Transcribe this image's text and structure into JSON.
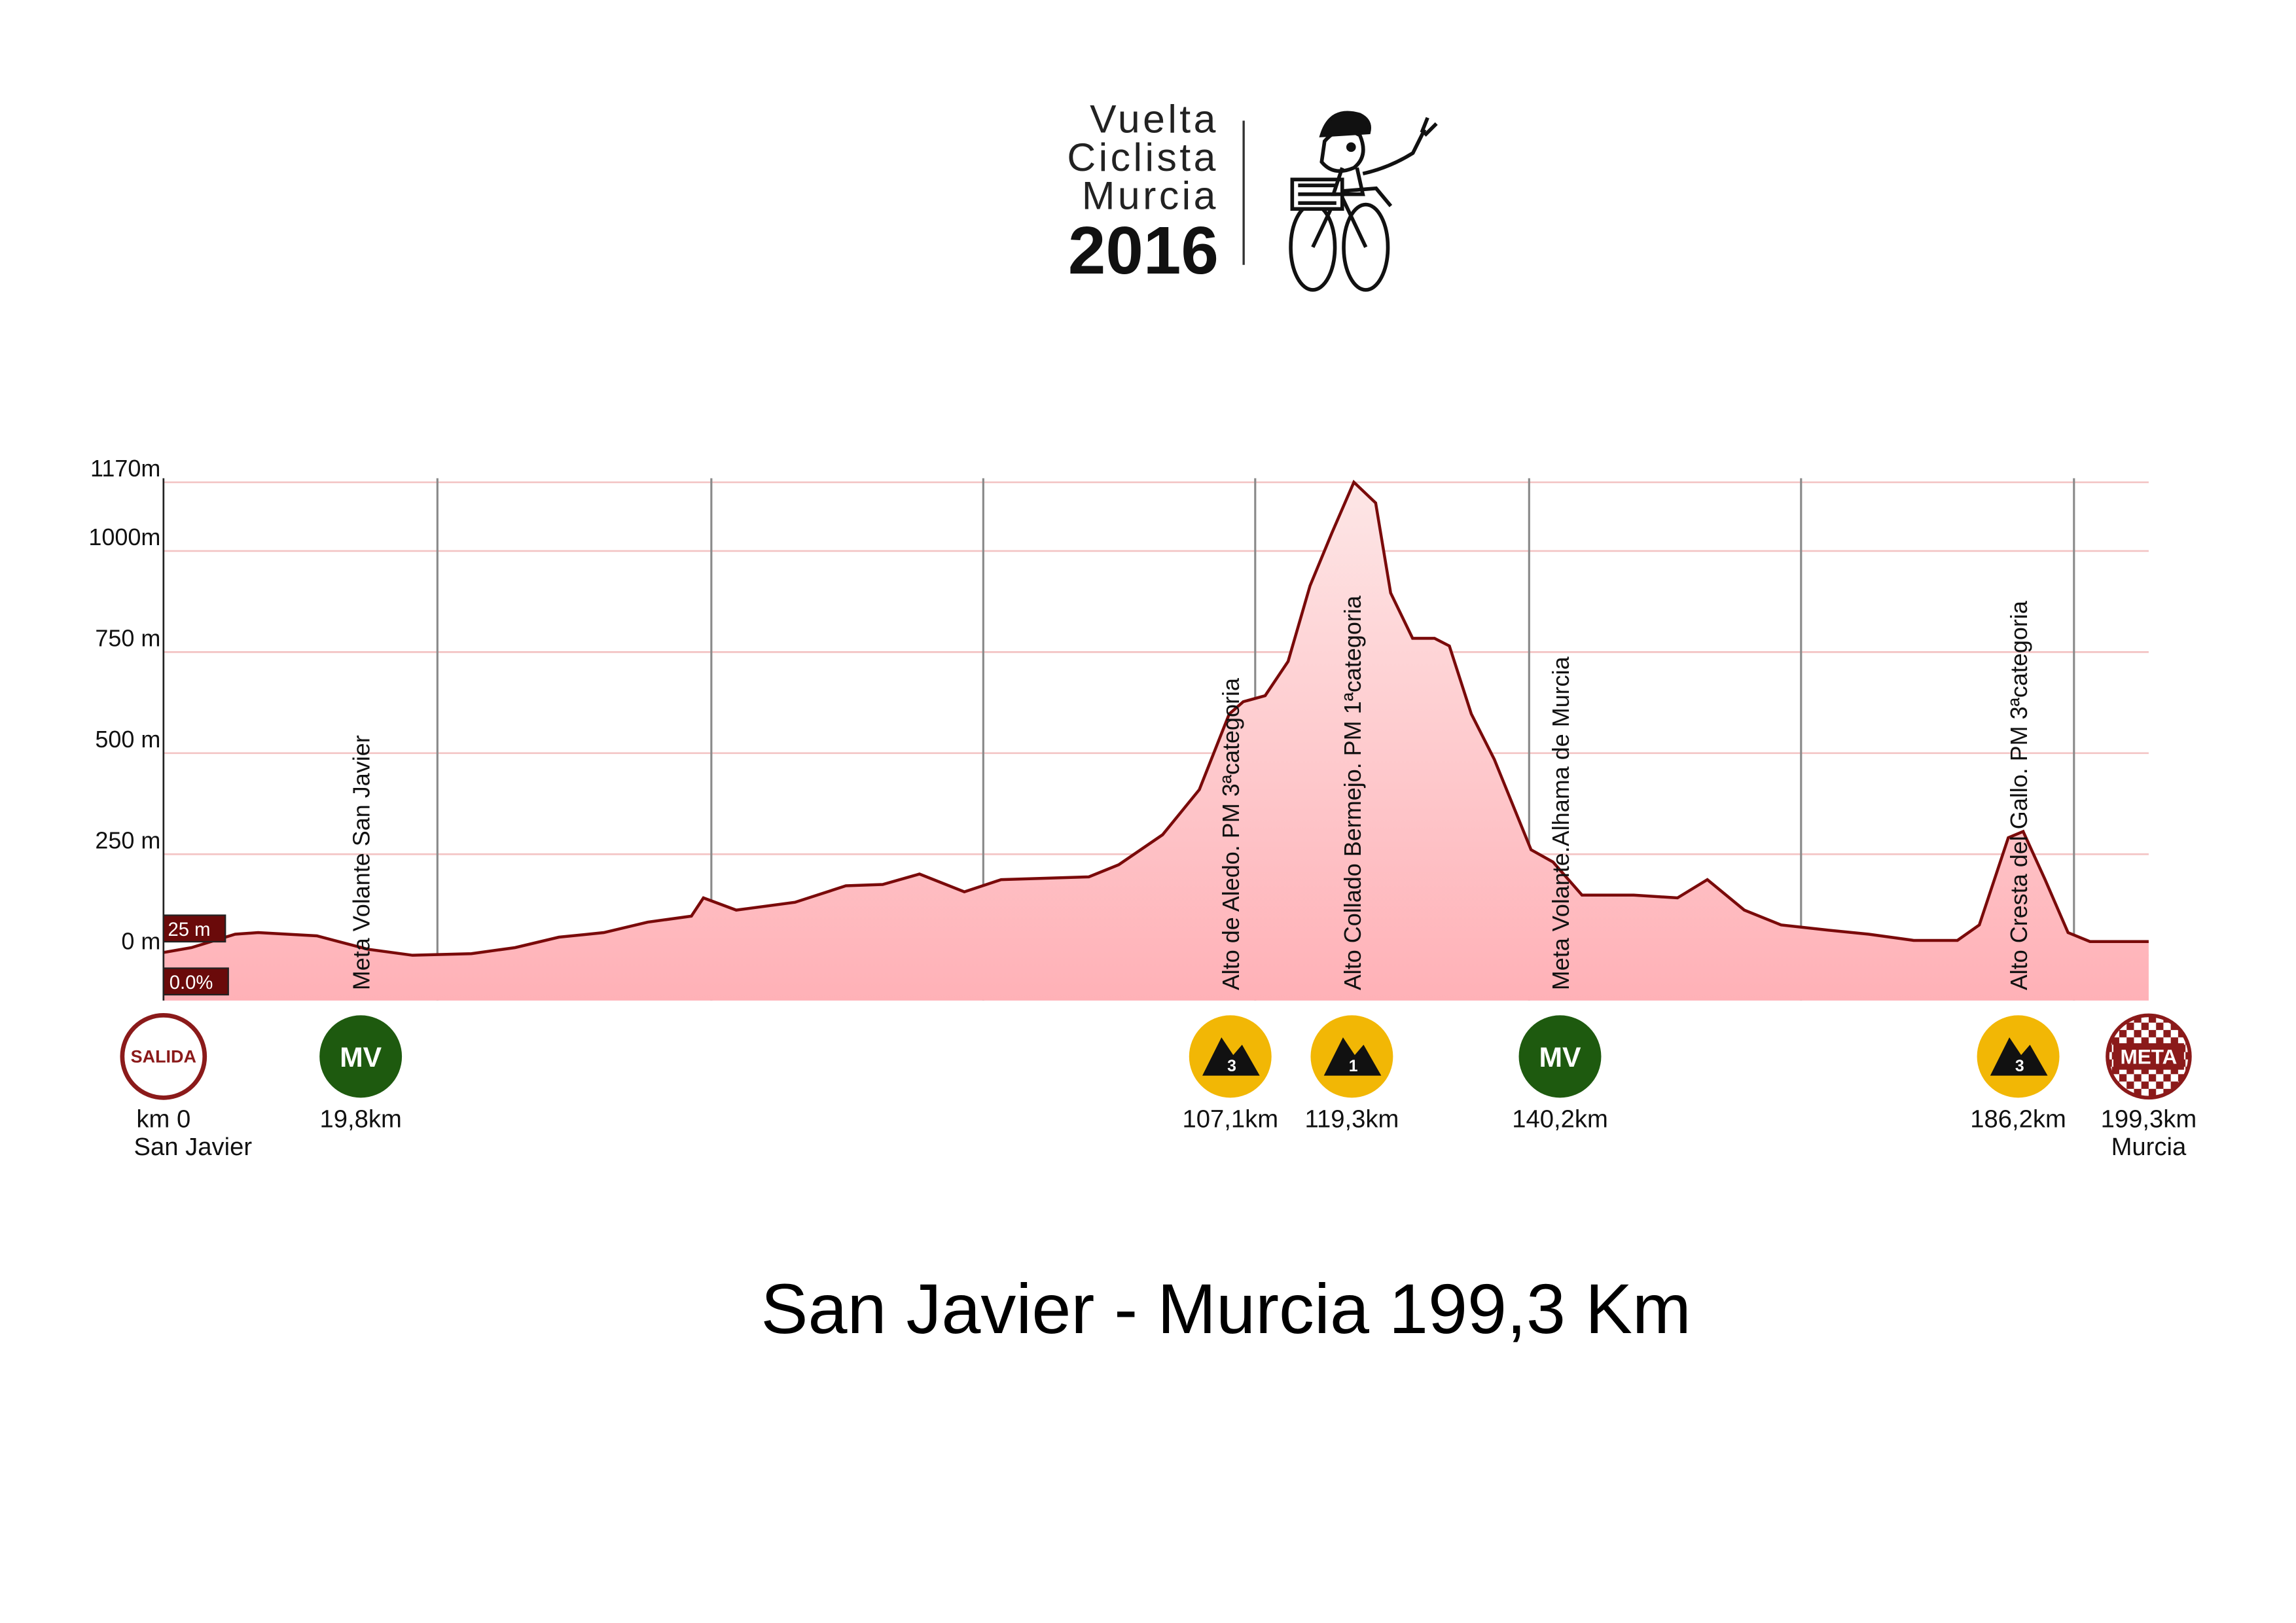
{
  "logo": {
    "lines": [
      "Vuelta",
      "Ciclista",
      "Murcia"
    ],
    "year": "2016"
  },
  "chart_data": {
    "type": "area",
    "title": "San Javier - Murcia 199,3 Km",
    "x": [
      0,
      2.8,
      7.2,
      9.5,
      15.4,
      20.5,
      25.0,
      30.9,
      35.3,
      39.7,
      44.2,
      48.6,
      53.0,
      54.2,
      57.5,
      63.4,
      68.5,
      72.2,
      75.9,
      80.4,
      84.1,
      92.9,
      95.9,
      100.3,
      104.0,
      107.0,
      108.4,
      110.6,
      112.9,
      115.1,
      117.3,
      119.5,
      121.7,
      123.2,
      125.4,
      127.6,
      129.1,
      131.3,
      133.6,
      137.3,
      139.5,
      142.4,
      147.6,
      152.0,
      155.0,
      158.7,
      162.4,
      166.8,
      171.2,
      175.7,
      180.1,
      182.3,
      185.2,
      186.7,
      188.9,
      191.2,
      193.4,
      199.3
    ],
    "values": [
      7,
      19,
      52,
      56,
      48,
      15,
      0,
      4,
      19,
      45,
      56,
      82,
      97,
      142,
      112,
      131,
      172,
      175,
      201,
      157,
      187,
      194,
      224,
      298,
      410,
      597,
      627,
      642,
      727,
      914,
      1045,
      1170,
      1119,
      896,
      784,
      784,
      765,
      597,
      485,
      261,
      231,
      149,
      149,
      142,
      187,
      112,
      75,
      63,
      52,
      37,
      37,
      75,
      291,
      306,
      187,
      56,
      34,
      34
    ],
    "color": "#7a0a0a",
    "fill": [
      "#fde6e6",
      "#ffb1b7"
    ],
    "xlim": [
      0,
      199.3
    ],
    "ylim": [
      -112,
      1180
    ],
    "yticks": [
      {
        "value": 0,
        "label": "0 m"
      },
      {
        "value": 250,
        "label": "250 m"
      },
      {
        "value": 500,
        "label": "500 m"
      },
      {
        "value": 750,
        "label": "750 m"
      },
      {
        "value": 1000,
        "label": "1000m"
      },
      {
        "value": 1170,
        "label": "1170m"
      }
    ],
    "xgrid": [
      27.5,
      55.0,
      82.3,
      109.6,
      137.1,
      164.4,
      191.8
    ],
    "grid": true,
    "readout": {
      "elevation": "25 m",
      "grade": "0.0%"
    },
    "markers": [
      {
        "km": 0,
        "icon": "SALIDA",
        "style": "ring",
        "color": "#8b1a1a",
        "value_label": "km 0",
        "place": "San Javier"
      },
      {
        "km": 19.8,
        "icon": "MV",
        "style": "disc",
        "color": "#1e5a0f",
        "value_label": "19,8km",
        "annotation": "Meta Volante San Javier"
      },
      {
        "km": 107.1,
        "icon": "3",
        "style": "mountain",
        "color": "#f2b705",
        "value_label": "107,1km",
        "annotation": "Alto de Aledo. PM 3ªcategoria"
      },
      {
        "km": 119.3,
        "icon": "1",
        "style": "mountain",
        "color": "#f2b705",
        "value_label": "119,3km",
        "annotation": "Alto Collado Bermejo. PM 1ªcategoria"
      },
      {
        "km": 140.2,
        "icon": "MV",
        "style": "disc",
        "color": "#1e5a0f",
        "value_label": "140,2km",
        "annotation": "Meta Volante.Alhama de Murcia"
      },
      {
        "km": 186.2,
        "icon": "3",
        "style": "mountain",
        "color": "#f2b705",
        "value_label": "186,2km",
        "annotation": "Alto Cresta del Gallo. PM 3ªcategoria"
      },
      {
        "km": 199.3,
        "icon": "META",
        "style": "checker",
        "color": "#8b1a1a",
        "value_label": "199,3km",
        "place": "Murcia"
      }
    ]
  }
}
